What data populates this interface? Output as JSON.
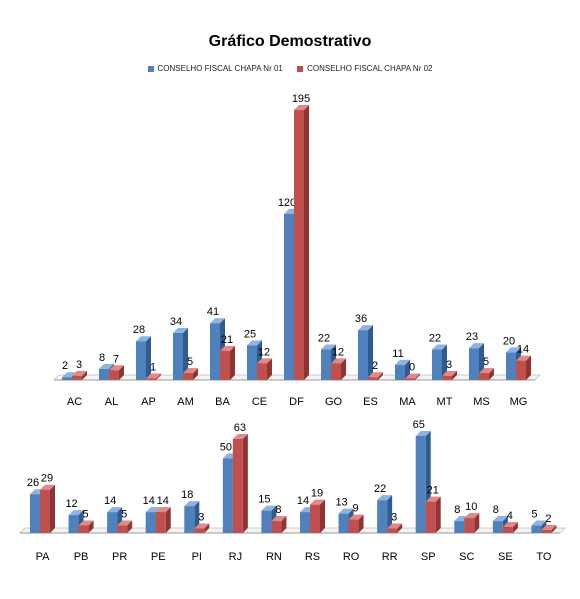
{
  "chart_data": {
    "type": "bar",
    "title": "Gráfico Demostrativo",
    "legend_position": "top",
    "colors": {
      "series1": "#4F81BD",
      "series2": "#C0504D"
    },
    "series_names": [
      "CONSELHO FISCAL CHAPA Nr 01",
      "CONSELHO FISCAL CHAPA Nr 02"
    ],
    "panels": [
      {
        "categories": [
          "AC",
          "AL",
          "AP",
          "AM",
          "BA",
          "CE",
          "DF",
          "GO",
          "ES",
          "MA",
          "MT",
          "MS",
          "MG"
        ],
        "series": [
          {
            "name": "CONSELHO FISCAL CHAPA Nr 01",
            "values": [
              2,
              8,
              28,
              34,
              41,
              25,
              120,
              22,
              36,
              11,
              22,
              23,
              20
            ]
          },
          {
            "name": "CONSELHO FISCAL CHAPA Nr 02",
            "values": [
              3,
              7,
              1,
              5,
              21,
              12,
              195,
              12,
              2,
              0,
              3,
              5,
              14
            ]
          }
        ],
        "ylim": [
          0,
          195
        ]
      },
      {
        "categories": [
          "PA",
          "PB",
          "PR",
          "PE",
          "PI",
          "RJ",
          "RN",
          "RS",
          "RO",
          "RR",
          "SP",
          "SC",
          "SE",
          "TO"
        ],
        "series": [
          {
            "name": "CONSELHO FISCAL CHAPA Nr 01",
            "values": [
              26,
              12,
              14,
              14,
              18,
              50,
              15,
              14,
              13,
              22,
              65,
              8,
              8,
              5
            ]
          },
          {
            "name": "CONSELHO FISCAL CHAPA Nr 02",
            "values": [
              29,
              5,
              5,
              14,
              3,
              63,
              8,
              19,
              9,
              3,
              21,
              10,
              4,
              2
            ]
          }
        ],
        "ylim": [
          0,
          65
        ]
      }
    ]
  }
}
